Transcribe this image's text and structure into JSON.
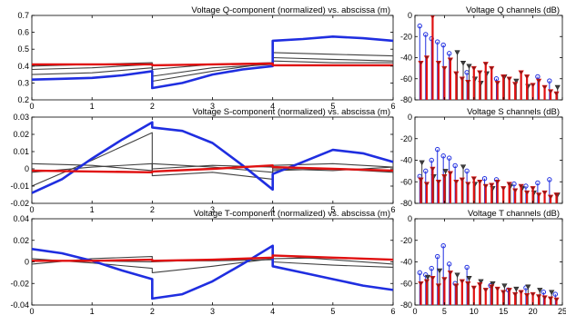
{
  "colors": {
    "blue": "#1f2ee0",
    "red": "#e01010",
    "gray": "#404040",
    "darkred": "#8a1a1a"
  },
  "chart_data": [
    {
      "type": "line",
      "title": "Voltage Q-component (normalized)  vs.  abscissa (m)",
      "xlim": [
        0,
        6
      ],
      "ylim": [
        0.2,
        0.7
      ],
      "xticks": [
        "0",
        "1",
        "2",
        "3",
        "4",
        "5",
        "6"
      ],
      "yticks": [
        "0.2",
        "0.3",
        "0.4",
        "0.5",
        "0.6",
        "0.7"
      ],
      "series": [
        {
          "color": "gray",
          "x": [
            0,
            1,
            2,
            2,
            3,
            4,
            4,
            5,
            6
          ],
          "y": [
            0.35,
            0.36,
            0.39,
            0.31,
            0.37,
            0.42,
            0.48,
            0.47,
            0.46
          ]
        },
        {
          "color": "gray",
          "x": [
            0,
            1,
            2,
            2,
            3,
            4,
            4,
            5,
            6
          ],
          "y": [
            0.38,
            0.39,
            0.41,
            0.34,
            0.39,
            0.41,
            0.45,
            0.44,
            0.43
          ]
        },
        {
          "color": "gray",
          "x": [
            0,
            1,
            2,
            2,
            3,
            4,
            4,
            5,
            6
          ],
          "y": [
            0.4,
            0.41,
            0.42,
            0.38,
            0.41,
            0.42,
            0.43,
            0.42,
            0.42
          ]
        },
        {
          "color": "blue",
          "x": [
            0,
            0.5,
            1,
            1.5,
            2,
            2,
            2.5,
            3,
            3.5,
            4,
            4,
            4.5,
            5,
            5.5,
            6
          ],
          "y": [
            0.32,
            0.325,
            0.33,
            0.345,
            0.37,
            0.27,
            0.3,
            0.35,
            0.38,
            0.4,
            0.55,
            0.56,
            0.575,
            0.565,
            0.55
          ]
        },
        {
          "color": "red",
          "x": [
            0,
            1,
            2,
            2,
            3,
            4,
            4,
            5,
            6
          ],
          "y": [
            0.41,
            0.41,
            0.41,
            0.405,
            0.41,
            0.415,
            0.405,
            0.405,
            0.405
          ]
        }
      ]
    },
    {
      "type": "line",
      "title": "Voltage S-component (normalized)  vs.  abscissa (m)",
      "xlim": [
        0,
        6
      ],
      "ylim": [
        -0.02,
        0.03
      ],
      "xticks": [
        "0",
        "1",
        "2",
        "3",
        "4",
        "5",
        "6"
      ],
      "yticks": [
        "-0.02",
        "-0.01",
        "0",
        "0.01",
        "0.02",
        "0.03"
      ],
      "series": [
        {
          "color": "gray",
          "x": [
            0,
            1,
            2,
            2,
            3,
            4,
            4,
            5,
            6
          ],
          "y": [
            -0.01,
            0.005,
            0.021,
            -0.004,
            -0.002,
            -0.006,
            -0.001,
            0.0,
            -0.002
          ]
        },
        {
          "color": "gray",
          "x": [
            0,
            1,
            2,
            2,
            3,
            4,
            4,
            5,
            6
          ],
          "y": [
            0.003,
            0.002,
            -0.001,
            0.003,
            0.001,
            -0.002,
            0.002,
            0.003,
            0.001
          ]
        },
        {
          "color": "gray",
          "x": [
            0,
            1,
            2,
            2,
            3,
            4,
            4,
            5,
            6
          ],
          "y": [
            -0.002,
            0.001,
            0.003,
            0.0,
            0.002,
            0.001,
            0.0,
            -0.001,
            0.001
          ]
        },
        {
          "color": "blue",
          "x": [
            0,
            0.5,
            1,
            1.5,
            2,
            2,
            2.5,
            3,
            3.5,
            4,
            4,
            4.5,
            5,
            5.5,
            6
          ],
          "y": [
            -0.014,
            -0.006,
            0.006,
            0.017,
            0.027,
            0.024,
            0.022,
            0.015,
            0.002,
            -0.012,
            -0.003,
            0.004,
            0.011,
            0.009,
            0.004
          ]
        },
        {
          "color": "red",
          "x": [
            0,
            1,
            2,
            2,
            3,
            4,
            4,
            5,
            6
          ],
          "y": [
            -0.001,
            -0.0015,
            -0.002,
            -0.0015,
            0.0,
            0.002,
            0.001,
            0.0,
            -0.001
          ]
        }
      ]
    },
    {
      "type": "line",
      "title": "Voltage T-component (normalized)  vs.  abscissa (m)",
      "xlim": [
        0,
        6
      ],
      "ylim": [
        -0.04,
        0.04
      ],
      "xticks": [
        "0",
        "1",
        "2",
        "3",
        "4",
        "5",
        "6"
      ],
      "yticks": [
        "-0.04",
        "-0.02",
        "0",
        "0.02",
        "0.04"
      ],
      "series": [
        {
          "color": "gray",
          "x": [
            0,
            1,
            2,
            2,
            3,
            4,
            4,
            5,
            6
          ],
          "y": [
            0.003,
            -0.001,
            -0.006,
            -0.01,
            -0.004,
            0.003,
            0.006,
            0.002,
            -0.002
          ]
        },
        {
          "color": "gray",
          "x": [
            0,
            1,
            2,
            2,
            3,
            4,
            4,
            5,
            6
          ],
          "y": [
            -0.002,
            0.003,
            0.005,
            0.0,
            0.002,
            0.004,
            0.0,
            -0.003,
            -0.005
          ]
        },
        {
          "color": "gray",
          "x": [
            0,
            1,
            2,
            2,
            3,
            4,
            4,
            5,
            6
          ],
          "y": [
            0.001,
            0.001,
            0.0,
            0.001,
            0.001,
            0.002,
            0.003,
            0.004,
            0.002
          ]
        },
        {
          "color": "blue",
          "x": [
            0,
            0.5,
            1,
            1.5,
            2,
            2,
            2.5,
            3,
            3.5,
            4,
            4,
            4.5,
            5,
            5.5,
            6
          ],
          "y": [
            0.012,
            0.008,
            0.001,
            -0.008,
            -0.016,
            -0.034,
            -0.03,
            -0.018,
            -0.002,
            0.015,
            -0.004,
            -0.01,
            -0.016,
            -0.022,
            -0.026
          ]
        },
        {
          "color": "red",
          "x": [
            0,
            1,
            2,
            2,
            3,
            4,
            4,
            5,
            6
          ],
          "y": [
            0.001,
            0.001,
            0.002,
            0.001,
            0.002,
            0.004,
            0.006,
            0.004,
            0.002
          ]
        }
      ]
    },
    {
      "type": "stem",
      "title": "Voltage Q channels (dB)",
      "xlim": [
        0,
        25
      ],
      "ylim": [
        -80,
        0
      ],
      "xticks": [],
      "yticks": [
        "-80",
        "-60",
        "-40",
        "-20",
        "0"
      ],
      "series": [
        {
          "color": "blue",
          "marker": "circle",
          "x": [
            1,
            2,
            3,
            4,
            5,
            6,
            9,
            14,
            21,
            23
          ],
          "y": [
            -10,
            -18,
            -22,
            -25,
            -28,
            -36,
            -54,
            -60,
            -58,
            -62
          ]
        },
        {
          "color": "gray",
          "marker": "triangle",
          "x": [
            7,
            8,
            9,
            10,
            11,
            12,
            15,
            17,
            19,
            24
          ],
          "y": [
            -35,
            -45,
            -48,
            -60,
            -64,
            -55,
            -58,
            -62,
            -67,
            -68
          ]
        },
        {
          "color": "red",
          "marker": "triangle",
          "x": [
            1,
            2,
            3,
            4,
            5,
            6,
            7,
            8,
            9,
            10,
            11,
            12,
            13,
            14,
            15,
            16,
            17,
            18,
            19,
            20,
            21,
            22,
            23,
            24
          ],
          "y": [
            -45,
            -40,
            -1,
            -45,
            -50,
            -42,
            -55,
            -60,
            -63,
            -50,
            -54,
            -46,
            -50,
            -64,
            -58,
            -60,
            -65,
            -54,
            -58,
            -66,
            -62,
            -68,
            -72,
            -74
          ]
        }
      ]
    },
    {
      "type": "stem",
      "title": "Voltage S channels (dB)",
      "xlim": [
        0,
        25
      ],
      "ylim": [
        -80,
        0
      ],
      "xticks": [],
      "yticks": [
        "-80",
        "-60",
        "-40",
        "-20",
        "0"
      ],
      "series": [
        {
          "color": "blue",
          "marker": "circle",
          "x": [
            1,
            2,
            3,
            4,
            5,
            6,
            7,
            9,
            12,
            14,
            17,
            19,
            21,
            23
          ],
          "y": [
            -55,
            -50,
            -40,
            -30,
            -36,
            -38,
            -45,
            -50,
            -57,
            -58,
            -62,
            -64,
            -61,
            -58
          ]
        },
        {
          "color": "gray",
          "marker": "triangle",
          "x": [
            1,
            3,
            5,
            8,
            10,
            13,
            16,
            18,
            20,
            24
          ],
          "y": [
            -42,
            -55,
            -50,
            -46,
            -62,
            -66,
            -64,
            -66,
            -70,
            -72
          ]
        },
        {
          "color": "red",
          "marker": "triangle",
          "x": [
            1,
            2,
            3,
            4,
            5,
            6,
            7,
            8,
            9,
            10,
            11,
            12,
            13,
            14,
            15,
            16,
            17,
            18,
            19,
            20,
            21,
            22,
            23,
            24
          ],
          "y": [
            -58,
            -62,
            -48,
            -60,
            -55,
            -52,
            -60,
            -58,
            -62,
            -57,
            -60,
            -64,
            -63,
            -60,
            -66,
            -62,
            -68,
            -64,
            -70,
            -66,
            -72,
            -70,
            -74,
            -72
          ]
        }
      ]
    },
    {
      "type": "stem",
      "title": "Voltage T channels (dB)",
      "xlim": [
        0,
        25
      ],
      "ylim": [
        -80,
        0
      ],
      "xticks": [
        "0",
        "5",
        "10",
        "15",
        "20",
        "25"
      ],
      "yticks": [
        "-80",
        "-60",
        "-40",
        "-20",
        "0"
      ],
      "series": [
        {
          "color": "blue",
          "marker": "circle",
          "x": [
            1,
            2,
            3,
            4,
            5,
            6,
            7,
            9,
            13,
            16,
            19,
            22,
            24
          ],
          "y": [
            -50,
            -52,
            -46,
            -35,
            -25,
            -42,
            -60,
            -45,
            -62,
            -66,
            -64,
            -68,
            -70
          ]
        },
        {
          "color": "gray",
          "marker": "triangle",
          "x": [
            2,
            4,
            7,
            9,
            11,
            13,
            15,
            17,
            19,
            21,
            23
          ],
          "y": [
            -54,
            -48,
            -52,
            -55,
            -58,
            -60,
            -62,
            -65,
            -63,
            -66,
            -68
          ]
        },
        {
          "color": "red",
          "marker": "triangle",
          "x": [
            1,
            2,
            3,
            4,
            5,
            6,
            7,
            8,
            9,
            10,
            11,
            12,
            13,
            14,
            15,
            16,
            17,
            18,
            19,
            20,
            21,
            22,
            23,
            24
          ],
          "y": [
            -60,
            -58,
            -55,
            -62,
            -56,
            -50,
            -62,
            -58,
            -60,
            -64,
            -61,
            -66,
            -63,
            -65,
            -68,
            -66,
            -70,
            -68,
            -71,
            -70,
            -72,
            -73,
            -74,
            -75
          ]
        }
      ]
    }
  ]
}
